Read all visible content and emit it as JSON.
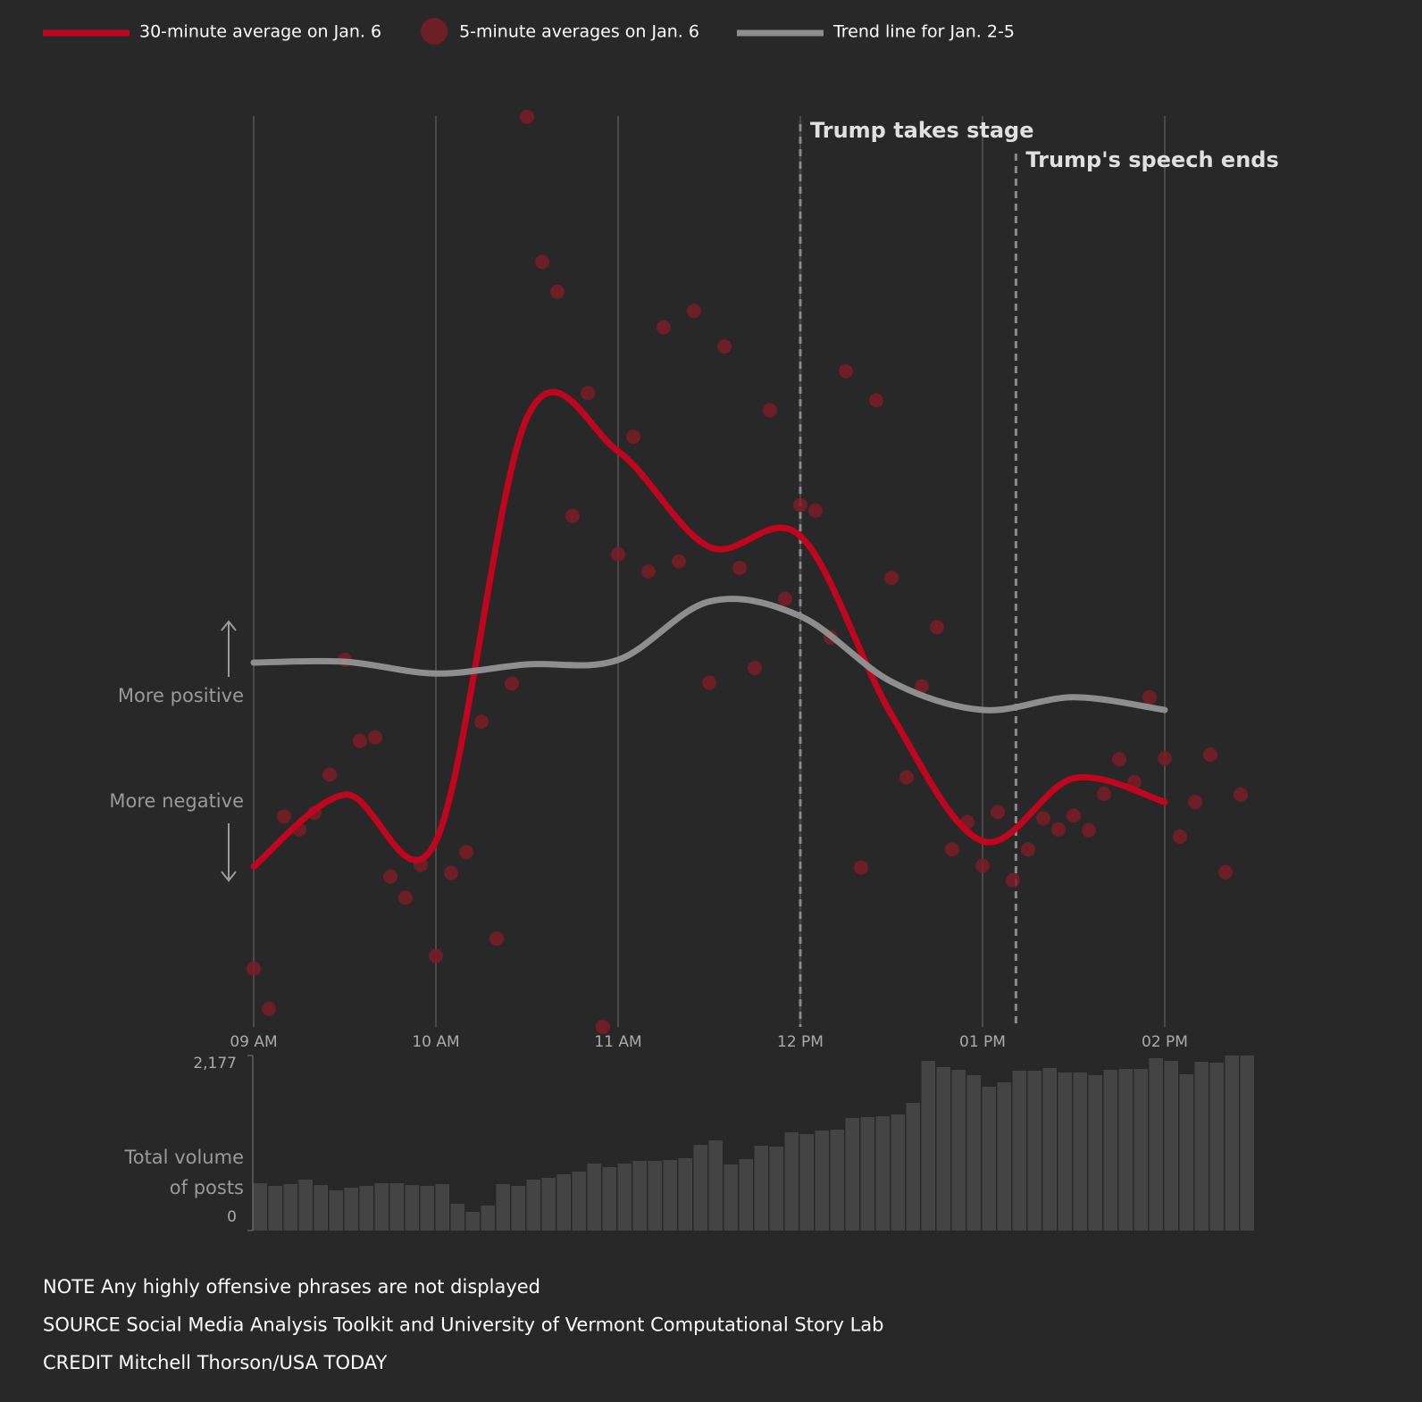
{
  "chart_data": [
    {
      "type": "line",
      "xlim": [
        540,
        870
      ],
      "xticks": [
        {
          "value": 540,
          "label": "09 AM"
        },
        {
          "value": 600,
          "label": "10 AM"
        },
        {
          "value": 660,
          "label": "11 AM"
        },
        {
          "value": 720,
          "label": "12 PM"
        },
        {
          "value": 780,
          "label": "01 PM"
        },
        {
          "value": 840,
          "label": "02 PM"
        }
      ],
      "ylim": [
        0,
        100
      ],
      "grid": true,
      "y_labels": [
        "More positive",
        "More negative"
      ],
      "annotations": [
        {
          "x": 720,
          "label": "Trump takes stage"
        },
        {
          "x": 791,
          "label": "Trump's speech ends"
        }
      ],
      "series": [
        {
          "name": "30-minute average on Jan. 6",
          "type": "line",
          "color": "#c0061f",
          "x": [
            540,
            570,
            600,
            630,
            660,
            690,
            720,
            750,
            780,
            810,
            840
          ],
          "values": [
            17.6,
            25.5,
            20.4,
            66.9,
            63.2,
            52.7,
            53.9,
            34.3,
            20.4,
            27.3,
            24.7
          ]
        },
        {
          "name": "5-minute averages on Jan. 6",
          "type": "scatter",
          "color": "#7a1c24",
          "x": [
            540,
            545,
            550,
            555,
            560,
            565,
            570,
            575,
            580,
            585,
            590,
            595,
            600,
            605,
            610,
            615,
            620,
            625,
            630,
            635,
            640,
            645,
            650,
            655,
            660,
            665,
            670,
            675,
            680,
            685,
            690,
            695,
            700,
            705,
            710,
            715,
            720,
            725,
            730,
            735,
            740,
            745,
            750,
            755,
            760,
            765,
            770,
            775,
            780,
            785,
            790,
            795,
            800,
            805,
            810,
            815,
            820,
            825,
            830,
            835,
            840,
            845,
            850,
            855,
            860,
            865
          ],
          "values": [
            6.4,
            2.0,
            23.1,
            21.7,
            23.5,
            27.7,
            40.3,
            31.4,
            31.8,
            16.5,
            14.2,
            17.8,
            7.8,
            16.9,
            19.2,
            33.5,
            9.7,
            37.7,
            99.9,
            84.0,
            80.7,
            56.1,
            69.6,
            0,
            51.9,
            64.8,
            50.0,
            76.8,
            51.1,
            78.6,
            37.8,
            74.7,
            50.4,
            39.4,
            67.7,
            47.0,
            57.3,
            56.7,
            42.8,
            72.0,
            17.5,
            68.8,
            49.3,
            27.4,
            37.4,
            43.9,
            19.5,
            22.5,
            17.7,
            23.6,
            16.1,
            19.5,
            22.9,
            21.7,
            23.2,
            21.6,
            25.6,
            29.4,
            26.9,
            36.2,
            29.5,
            20.9,
            24.7,
            29.9,
            17.0,
            25.5
          ]
        },
        {
          "name": "Trend line for Jan. 2-5",
          "type": "line",
          "color": "#8e8e8e",
          "x": [
            540,
            570,
            600,
            630,
            660,
            690,
            720,
            750,
            780,
            810,
            840
          ],
          "values": [
            40.0,
            40.1,
            38.8,
            39.8,
            40.3,
            46.7,
            45.1,
            37.9,
            34.8,
            36.2,
            34.8
          ]
        }
      ]
    },
    {
      "type": "bar",
      "ylabel": [
        "Total volume",
        "of posts"
      ],
      "xlim": [
        540,
        870
      ],
      "ylim": [
        0,
        2177
      ],
      "yticks": [
        {
          "value": 2177,
          "label": "2,177"
        },
        0
      ],
      "color": "#444444",
      "x": [
        540,
        545,
        550,
        555,
        560,
        565,
        570,
        575,
        580,
        585,
        590,
        595,
        600,
        605,
        610,
        615,
        620,
        625,
        630,
        635,
        640,
        645,
        650,
        655,
        660,
        665,
        670,
        675,
        680,
        685,
        690,
        695,
        700,
        705,
        710,
        715,
        720,
        725,
        730,
        735,
        740,
        745,
        750,
        755,
        760,
        765,
        770,
        775,
        780,
        785,
        790,
        795,
        800,
        805,
        810,
        815,
        820,
        825,
        830,
        835,
        840,
        845,
        850,
        855,
        860,
        865
      ],
      "values": [
        589,
        555,
        578,
        633,
        566,
        500,
        533,
        555,
        589,
        589,
        566,
        555,
        578,
        333,
        233,
        311,
        578,
        555,
        633,
        655,
        700,
        733,
        833,
        789,
        833,
        866,
        866,
        877,
        900,
        1066,
        1122,
        822,
        889,
        1055,
        1044,
        1222,
        1200,
        1244,
        1255,
        1400,
        1411,
        1422,
        1444,
        1588,
        2110,
        2033,
        1999,
        1933,
        1788,
        1844,
        1988,
        1988,
        2022,
        1966,
        1966,
        1933,
        1999,
        2010,
        2010,
        2144,
        2110,
        1944,
        2099,
        2088,
        2177,
        2177
      ]
    }
  ],
  "notes": [
    "NOTE Any highly offensive phrases are not displayed",
    "SOURCE Social Media Analysis Toolkit and University of Vermont Computational Story Lab",
    "CREDIT Mitchell Thorson/USA TODAY"
  ]
}
